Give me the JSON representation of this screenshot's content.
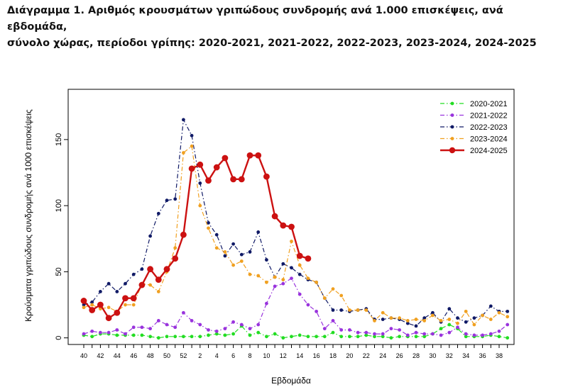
{
  "chart_data": {
    "type": "line",
    "title_line1": "Διάγραμμα 1. Αριθμός κρουσμάτων γριπώδους συνδρομής ανά 1.000 επισκέψεις, ανά εβδομάδα,",
    "title_line2": "σύνολο χώρας, περίοδοι γρίπης: 2020-2021, 2021-2022, 2022-2023, 2023-2024, 2024-2025",
    "xlabel": "Εβδομάδα",
    "ylabel": "Κρούσματα γριπώδους συνδρομής ανά 1000 επισκέψεις",
    "y_ticks": [
      0,
      50,
      100,
      150
    ],
    "x_tick_labels": [
      "40",
      "42",
      "44",
      "46",
      "48",
      "50",
      "52",
      "2",
      "4",
      "6",
      "8",
      "10",
      "12",
      "14",
      "16",
      "18",
      "20",
      "22",
      "24",
      "26",
      "28",
      "30",
      "32",
      "34",
      "36",
      "38"
    ],
    "weeks": [
      40,
      41,
      42,
      43,
      44,
      45,
      46,
      47,
      48,
      49,
      50,
      51,
      52,
      1,
      2,
      3,
      4,
      5,
      6,
      7,
      8,
      9,
      10,
      11,
      12,
      13,
      14,
      15,
      16,
      17,
      18,
      19,
      20,
      21,
      22,
      23,
      24,
      25,
      26,
      27,
      28,
      29,
      30,
      31,
      32,
      33,
      34,
      35,
      36,
      37,
      38,
      39
    ],
    "ylim": [
      -5,
      188
    ],
    "legend_position": "top-right",
    "series": [
      {
        "name": "2020-2021",
        "color": "#22dd22",
        "values": [
          2,
          1,
          3,
          3,
          2,
          2,
          2,
          2,
          1,
          0,
          1,
          1,
          1,
          1,
          1,
          2,
          3,
          2,
          3,
          9,
          2,
          4,
          1,
          3,
          0,
          1,
          2,
          1,
          1,
          1,
          4,
          1,
          1,
          1,
          2,
          1,
          1,
          0,
          1,
          1,
          1,
          1,
          3,
          7,
          10,
          7,
          1,
          1,
          1,
          2,
          1,
          0
        ]
      },
      {
        "name": "2021-2022",
        "color": "#9933dd",
        "values": [
          3,
          5,
          4,
          4,
          6,
          3,
          8,
          8,
          7,
          13,
          10,
          8,
          19,
          13,
          10,
          6,
          5,
          7,
          12,
          10,
          7,
          10,
          26,
          39,
          41,
          45,
          33,
          25,
          20,
          7,
          13,
          6,
          6,
          4,
          4,
          3,
          3,
          7,
          6,
          2,
          4,
          3,
          3,
          2,
          4,
          8,
          3,
          2,
          2,
          3,
          5,
          10
        ]
      },
      {
        "name": "2022-2023",
        "color": "#101a66",
        "values": [
          25,
          27,
          35,
          41,
          35,
          41,
          48,
          52,
          77,
          94,
          104,
          105,
          165,
          153,
          117,
          87,
          78,
          62,
          71,
          63,
          65,
          80,
          59,
          46,
          56,
          53,
          48,
          44,
          42,
          30,
          21,
          21,
          20,
          21,
          22,
          14,
          14,
          15,
          14,
          11,
          9,
          15,
          19,
          12,
          22,
          15,
          12,
          15,
          17,
          24,
          20,
          20
        ]
      },
      {
        "name": "2023-2024",
        "color": "#f0a020",
        "values": [
          23,
          25,
          22,
          23,
          20,
          25,
          25,
          41,
          40,
          35,
          50,
          68,
          140,
          145,
          100,
          83,
          68,
          65,
          55,
          58,
          48,
          47,
          42,
          46,
          44,
          73,
          55,
          45,
          42,
          30,
          37,
          32,
          21,
          21,
          21,
          13,
          19,
          15,
          15,
          13,
          14,
          13,
          17,
          13,
          14,
          11,
          20,
          10,
          17,
          14,
          19,
          16
        ]
      },
      {
        "name": "2024-2025",
        "color": "#cc1111",
        "values": [
          28,
          21,
          25,
          15,
          19,
          30,
          30,
          40,
          52,
          44,
          52,
          60,
          78,
          128,
          131,
          119,
          129,
          136,
          120,
          120,
          138,
          138,
          122,
          92,
          85,
          84,
          62,
          60
        ]
      }
    ]
  }
}
